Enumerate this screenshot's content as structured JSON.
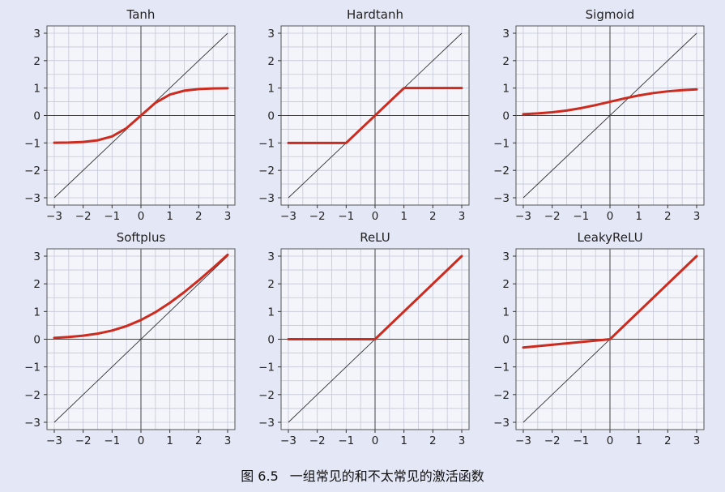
{
  "caption": {
    "label": "图 6.5",
    "text": "一组常见的和不太常见的激活函数"
  },
  "chart_style": {
    "background": "#e4e8f6",
    "plot_background": "#f3f5fb",
    "grid_color": "#c3c8d6",
    "axis_color": "#444444",
    "identity_line_color": "#333333",
    "curve_color": "#cc2b1f"
  },
  "chart_data": [
    {
      "type": "line",
      "title": "Tanh",
      "xlim": [
        -3,
        3
      ],
      "ylim": [
        -3,
        3
      ],
      "xticks": [
        "−3",
        "−2",
        "−1",
        "0",
        "1",
        "2",
        "3"
      ],
      "yticks": [
        "3",
        "2",
        "1",
        "0",
        "−1",
        "−2",
        "−3"
      ],
      "grid": true,
      "series": [
        {
          "role": "identity",
          "x": [
            -3,
            3
          ],
          "y": [
            -3,
            3
          ]
        },
        {
          "role": "activation",
          "x": [
            -3,
            -2.5,
            -2,
            -1.5,
            -1,
            -0.5,
            0,
            0.5,
            1,
            1.5,
            2,
            2.5,
            3
          ],
          "y": [
            -0.995,
            -0.987,
            -0.964,
            -0.905,
            -0.762,
            -0.462,
            0,
            0.462,
            0.762,
            0.905,
            0.964,
            0.987,
            0.995
          ]
        }
      ]
    },
    {
      "type": "line",
      "title": "Hardtanh",
      "xlim": [
        -3,
        3
      ],
      "ylim": [
        -3,
        3
      ],
      "xticks": [
        "−3",
        "−2",
        "−1",
        "0",
        "1",
        "2",
        "3"
      ],
      "yticks": [
        "3",
        "2",
        "1",
        "0",
        "−1",
        "−2",
        "−3"
      ],
      "grid": true,
      "series": [
        {
          "role": "identity",
          "x": [
            -3,
            3
          ],
          "y": [
            -3,
            3
          ]
        },
        {
          "role": "activation",
          "x": [
            -3,
            -1,
            1,
            3
          ],
          "y": [
            -1,
            -1,
            1,
            1
          ]
        }
      ]
    },
    {
      "type": "line",
      "title": "Sigmoid",
      "xlim": [
        -3,
        3
      ],
      "ylim": [
        -3,
        3
      ],
      "xticks": [
        "−3",
        "−2",
        "−1",
        "0",
        "1",
        "2",
        "3"
      ],
      "yticks": [
        "3",
        "2",
        "1",
        "0",
        "−1",
        "−2",
        "−3"
      ],
      "grid": true,
      "series": [
        {
          "role": "identity",
          "x": [
            -3,
            3
          ],
          "y": [
            -3,
            3
          ]
        },
        {
          "role": "activation",
          "x": [
            -3,
            -2.5,
            -2,
            -1.5,
            -1,
            -0.5,
            0,
            0.5,
            1,
            1.5,
            2,
            2.5,
            3
          ],
          "y": [
            0.047,
            0.076,
            0.119,
            0.182,
            0.269,
            0.378,
            0.5,
            0.622,
            0.731,
            0.818,
            0.881,
            0.924,
            0.953
          ]
        }
      ]
    },
    {
      "type": "line",
      "title": "Softplus",
      "xlim": [
        -3,
        3
      ],
      "ylim": [
        -3,
        3
      ],
      "xticks": [
        "−3",
        "−2",
        "−1",
        "0",
        "1",
        "2",
        "3"
      ],
      "yticks": [
        "3",
        "2",
        "1",
        "0",
        "−1",
        "−2",
        "−3"
      ],
      "grid": true,
      "series": [
        {
          "role": "identity",
          "x": [
            -3,
            3
          ],
          "y": [
            -3,
            3
          ]
        },
        {
          "role": "activation",
          "x": [
            -3,
            -2.5,
            -2,
            -1.5,
            -1,
            -0.5,
            0,
            0.5,
            1,
            1.5,
            2,
            2.5,
            3
          ],
          "y": [
            0.049,
            0.079,
            0.127,
            0.201,
            0.313,
            0.474,
            0.693,
            0.974,
            1.313,
            1.701,
            2.127,
            2.579,
            3.049
          ]
        }
      ]
    },
    {
      "type": "line",
      "title": "ReLU",
      "xlim": [
        -3,
        3
      ],
      "ylim": [
        -3,
        3
      ],
      "xticks": [
        "−3",
        "−2",
        "−1",
        "0",
        "1",
        "2",
        "3"
      ],
      "yticks": [
        "3",
        "2",
        "1",
        "0",
        "−1",
        "−2",
        "−3"
      ],
      "grid": true,
      "series": [
        {
          "role": "identity",
          "x": [
            -3,
            3
          ],
          "y": [
            -3,
            3
          ]
        },
        {
          "role": "activation",
          "x": [
            -3,
            0,
            3
          ],
          "y": [
            0,
            0,
            3
          ]
        }
      ]
    },
    {
      "type": "line",
      "title": "LeakyReLU",
      "xlim": [
        -3,
        3
      ],
      "ylim": [
        -3,
        3
      ],
      "xticks": [
        "−3",
        "−2",
        "−1",
        "0",
        "1",
        "2",
        "3"
      ],
      "yticks": [
        "3",
        "2",
        "1",
        "0",
        "−1",
        "−2",
        "−3"
      ],
      "grid": true,
      "series": [
        {
          "role": "identity",
          "x": [
            -3,
            3
          ],
          "y": [
            -3,
            3
          ]
        },
        {
          "role": "activation",
          "x": [
            -3,
            0,
            3
          ],
          "y": [
            -0.3,
            0,
            3
          ]
        }
      ]
    }
  ]
}
